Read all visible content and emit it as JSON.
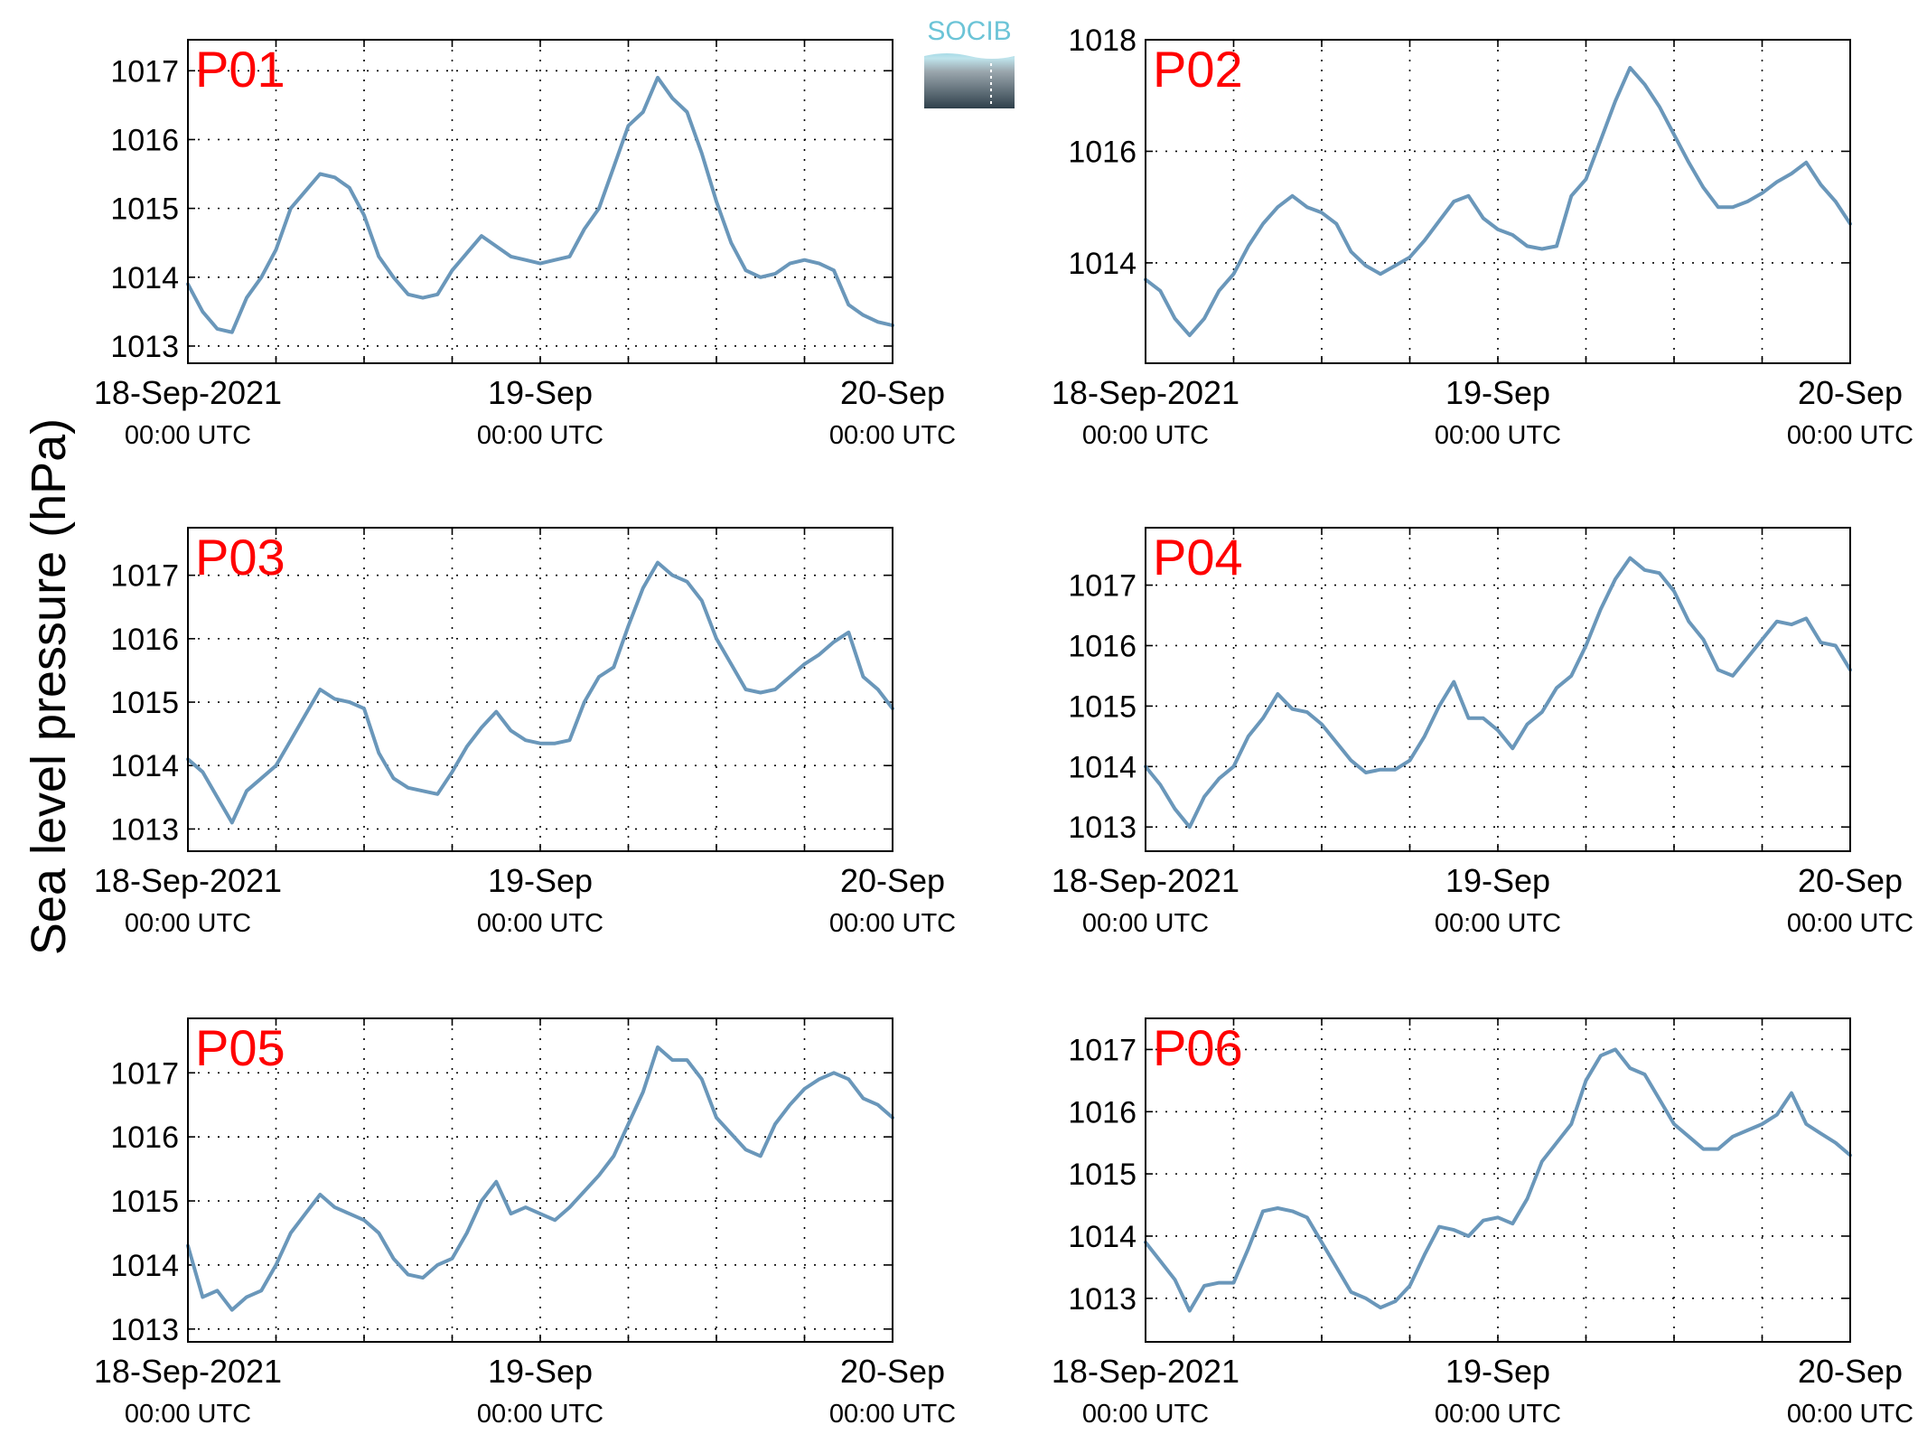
{
  "logo": {
    "text": "SOCIB",
    "icon": "socib-logo"
  },
  "ylabel": "Sea level pressure (hPa)",
  "colors": {
    "line": "#6a97ba",
    "label": "#ff0000",
    "axis": "#000000",
    "grid": "#000000",
    "logo_top": "#6cc4d7",
    "logo_bottom": "#2f404b"
  },
  "xtick_labels": [
    {
      "date": "18-Sep-2021",
      "time": "00:00 UTC"
    },
    {
      "date": "19-Sep",
      "time": "00:00 UTC"
    },
    {
      "date": "20-Sep",
      "time": "00:00 UTC"
    }
  ],
  "chart_data": [
    {
      "type": "line",
      "name": "P01",
      "x_unit": "hours since 18-Sep-2021 00:00 UTC",
      "xlim": [
        0,
        48
      ],
      "ylim": [
        1012.75,
        1017.45
      ],
      "yticks": [
        1013,
        1014,
        1015,
        1016,
        1017
      ],
      "grid": true,
      "x": [
        0,
        1,
        2,
        3,
        4,
        5,
        6,
        7,
        8,
        9,
        10,
        11,
        12,
        13,
        14,
        15,
        16,
        17,
        18,
        19,
        20,
        21,
        22,
        23,
        24,
        25,
        26,
        27,
        28,
        29,
        30,
        31,
        32,
        33,
        34,
        35,
        36,
        37,
        38,
        39,
        40,
        41,
        42,
        43,
        44,
        45,
        46,
        47,
        48
      ],
      "y": [
        1013.9,
        1013.5,
        1013.25,
        1013.2,
        1013.7,
        1014.0,
        1014.4,
        1015.0,
        1015.25,
        1015.5,
        1015.45,
        1015.3,
        1014.9,
        1014.3,
        1014.0,
        1013.75,
        1013.7,
        1013.75,
        1014.1,
        1014.35,
        1014.6,
        1014.45,
        1014.3,
        1014.25,
        1014.2,
        1014.25,
        1014.3,
        1014.7,
        1015.0,
        1015.6,
        1016.2,
        1016.4,
        1016.9,
        1016.6,
        1016.4,
        1015.8,
        1015.1,
        1014.5,
        1014.1,
        1014.0,
        1014.05,
        1014.2,
        1014.25,
        1014.2,
        1014.1,
        1013.6,
        1013.45,
        1013.35,
        1013.3
      ]
    },
    {
      "type": "line",
      "name": "P02",
      "x_unit": "hours since 18-Sep-2021 00:00 UTC",
      "xlim": [
        0,
        48
      ],
      "ylim": [
        1012.2,
        1018.0
      ],
      "yticks": [
        1014,
        1016,
        1018
      ],
      "grid": true,
      "x": [
        0,
        1,
        2,
        3,
        4,
        5,
        6,
        7,
        8,
        9,
        10,
        11,
        12,
        13,
        14,
        15,
        16,
        17,
        18,
        19,
        20,
        21,
        22,
        23,
        24,
        25,
        26,
        27,
        28,
        29,
        30,
        31,
        32,
        33,
        34,
        35,
        36,
        37,
        38,
        39,
        40,
        41,
        42,
        43,
        44,
        45,
        46,
        47,
        48
      ],
      "y": [
        1013.7,
        1013.5,
        1013.0,
        1012.7,
        1013.0,
        1013.5,
        1013.8,
        1014.3,
        1014.7,
        1015.0,
        1015.2,
        1015.0,
        1014.9,
        1014.7,
        1014.2,
        1013.95,
        1013.8,
        1013.95,
        1014.1,
        1014.4,
        1014.75,
        1015.1,
        1015.2,
        1014.8,
        1014.6,
        1014.5,
        1014.3,
        1014.25,
        1014.3,
        1015.2,
        1015.5,
        1016.2,
        1016.9,
        1017.5,
        1017.2,
        1016.8,
        1016.3,
        1015.8,
        1015.35,
        1015.0,
        1015.0,
        1015.1,
        1015.25,
        1015.45,
        1015.6,
        1015.8,
        1015.4,
        1015.1,
        1014.7
      ]
    },
    {
      "type": "line",
      "name": "P03",
      "x_unit": "hours since 18-Sep-2021 00:00 UTC",
      "xlim": [
        0,
        48
      ],
      "ylim": [
        1012.65,
        1017.75
      ],
      "yticks": [
        1013,
        1014,
        1015,
        1016,
        1017
      ],
      "grid": true,
      "x": [
        0,
        1,
        2,
        3,
        4,
        5,
        6,
        7,
        8,
        9,
        10,
        11,
        12,
        13,
        14,
        15,
        16,
        17,
        18,
        19,
        20,
        21,
        22,
        23,
        24,
        25,
        26,
        27,
        28,
        29,
        30,
        31,
        32,
        33,
        34,
        35,
        36,
        37,
        38,
        39,
        40,
        41,
        42,
        43,
        44,
        45,
        46,
        47,
        48
      ],
      "y": [
        1014.1,
        1013.9,
        1013.5,
        1013.1,
        1013.6,
        1013.8,
        1014.0,
        1014.4,
        1014.8,
        1015.2,
        1015.05,
        1015.0,
        1014.9,
        1014.2,
        1013.8,
        1013.65,
        1013.6,
        1013.55,
        1013.9,
        1014.3,
        1014.6,
        1014.85,
        1014.55,
        1014.4,
        1014.35,
        1014.35,
        1014.4,
        1015.0,
        1015.4,
        1015.55,
        1016.2,
        1016.8,
        1017.2,
        1017.0,
        1016.9,
        1016.6,
        1016.0,
        1015.6,
        1015.2,
        1015.15,
        1015.2,
        1015.4,
        1015.6,
        1015.75,
        1015.95,
        1016.1,
        1015.4,
        1015.2,
        1014.9
      ]
    },
    {
      "type": "line",
      "name": "P04",
      "x_unit": "hours since 18-Sep-2021 00:00 UTC",
      "xlim": [
        0,
        48
      ],
      "ylim": [
        1012.6,
        1017.95
      ],
      "yticks": [
        1013,
        1014,
        1015,
        1016,
        1017
      ],
      "grid": true,
      "x": [
        0,
        1,
        2,
        3,
        4,
        5,
        6,
        7,
        8,
        9,
        10,
        11,
        12,
        13,
        14,
        15,
        16,
        17,
        18,
        19,
        20,
        21,
        22,
        23,
        24,
        25,
        26,
        27,
        28,
        29,
        30,
        31,
        32,
        33,
        34,
        35,
        36,
        37,
        38,
        39,
        40,
        41,
        42,
        43,
        44,
        45,
        46,
        47,
        48
      ],
      "y": [
        1014.0,
        1013.7,
        1013.3,
        1013.0,
        1013.5,
        1013.8,
        1014.0,
        1014.5,
        1014.8,
        1015.2,
        1014.95,
        1014.9,
        1014.7,
        1014.4,
        1014.1,
        1013.9,
        1013.95,
        1013.95,
        1014.1,
        1014.5,
        1015.0,
        1015.4,
        1014.8,
        1014.8,
        1014.6,
        1014.3,
        1014.7,
        1014.9,
        1015.3,
        1015.5,
        1016.0,
        1016.6,
        1017.1,
        1017.45,
        1017.25,
        1017.2,
        1016.9,
        1016.4,
        1016.1,
        1015.6,
        1015.5,
        1015.8,
        1016.1,
        1016.4,
        1016.35,
        1016.45,
        1016.05,
        1016.0,
        1015.6
      ]
    },
    {
      "type": "line",
      "name": "P05",
      "x_unit": "hours since 18-Sep-2021 00:00 UTC",
      "xlim": [
        0,
        48
      ],
      "ylim": [
        1012.8,
        1017.85
      ],
      "yticks": [
        1013,
        1014,
        1015,
        1016,
        1017
      ],
      "grid": true,
      "x": [
        0,
        1,
        2,
        3,
        4,
        5,
        6,
        7,
        8,
        9,
        10,
        11,
        12,
        13,
        14,
        15,
        16,
        17,
        18,
        19,
        20,
        21,
        22,
        23,
        24,
        25,
        26,
        27,
        28,
        29,
        30,
        31,
        32,
        33,
        34,
        35,
        36,
        37,
        38,
        39,
        40,
        41,
        42,
        43,
        44,
        45,
        46,
        47,
        48
      ],
      "y": [
        1014.3,
        1013.5,
        1013.6,
        1013.3,
        1013.5,
        1013.6,
        1014.0,
        1014.5,
        1014.8,
        1015.1,
        1014.9,
        1014.8,
        1014.7,
        1014.5,
        1014.1,
        1013.85,
        1013.8,
        1014.0,
        1014.1,
        1014.5,
        1015.0,
        1015.3,
        1014.8,
        1014.9,
        1014.8,
        1014.7,
        1014.9,
        1015.15,
        1015.4,
        1015.7,
        1016.2,
        1016.7,
        1017.4,
        1017.2,
        1017.2,
        1016.9,
        1016.3,
        1016.05,
        1015.8,
        1015.7,
        1016.2,
        1016.5,
        1016.75,
        1016.9,
        1017.0,
        1016.9,
        1016.6,
        1016.5,
        1016.3
      ]
    },
    {
      "type": "line",
      "name": "P06",
      "x_unit": "hours since 18-Sep-2021 00:00 UTC",
      "xlim": [
        0,
        48
      ],
      "ylim": [
        1012.3,
        1017.5
      ],
      "yticks": [
        1013,
        1014,
        1015,
        1016,
        1017
      ],
      "grid": true,
      "x": [
        0,
        1,
        2,
        3,
        4,
        5,
        6,
        7,
        8,
        9,
        10,
        11,
        12,
        13,
        14,
        15,
        16,
        17,
        18,
        19,
        20,
        21,
        22,
        23,
        24,
        25,
        26,
        27,
        28,
        29,
        30,
        31,
        32,
        33,
        34,
        35,
        36,
        37,
        38,
        39,
        40,
        41,
        42,
        43,
        44,
        45,
        46,
        47,
        48
      ],
      "y": [
        1013.9,
        1013.6,
        1013.3,
        1012.8,
        1013.2,
        1013.25,
        1013.25,
        1013.8,
        1014.4,
        1014.45,
        1014.4,
        1014.3,
        1013.9,
        1013.5,
        1013.1,
        1013.0,
        1012.85,
        1012.95,
        1013.2,
        1013.7,
        1014.15,
        1014.1,
        1014.0,
        1014.25,
        1014.3,
        1014.2,
        1014.6,
        1015.2,
        1015.5,
        1015.8,
        1016.5,
        1016.9,
        1017.0,
        1016.7,
        1016.6,
        1016.2,
        1015.8,
        1015.6,
        1015.4,
        1015.4,
        1015.6,
        1015.7,
        1015.8,
        1015.95,
        1016.3,
        1015.8,
        1015.65,
        1015.5,
        1015.3
      ]
    }
  ]
}
